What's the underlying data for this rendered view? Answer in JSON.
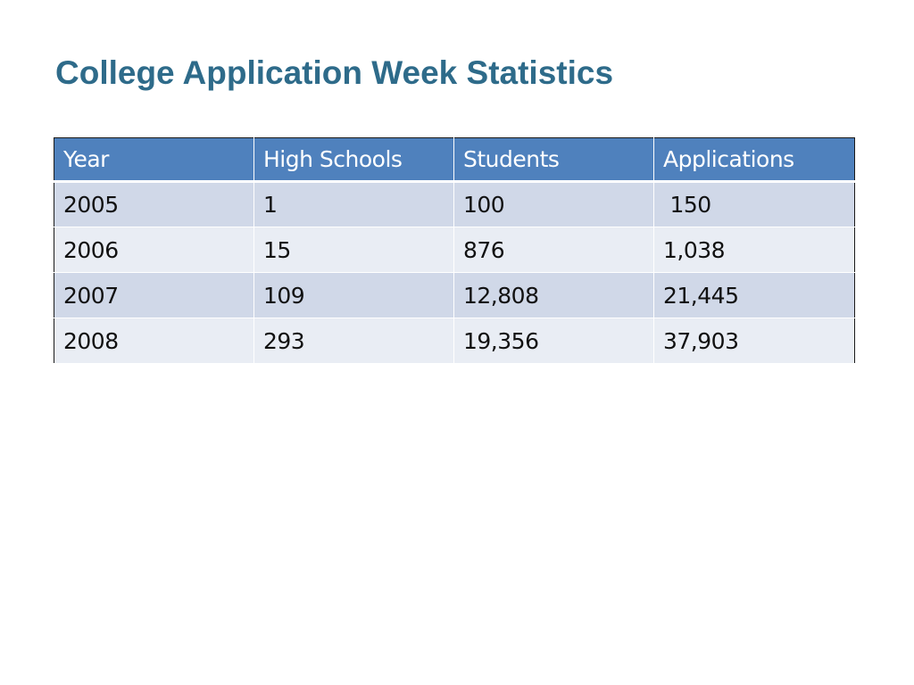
{
  "slide": {
    "title": "College Application Week Statistics"
  },
  "table": {
    "headers": [
      "Year",
      "High Schools",
      "Students",
      "Applications"
    ],
    "rows": [
      [
        "2005",
        "1",
        "100",
        " 150"
      ],
      [
        "2006",
        "15",
        "876",
        "1,038"
      ],
      [
        "2007",
        "109",
        "12,808",
        "21,445"
      ],
      [
        "2008",
        "293",
        "19,356",
        "37,903"
      ]
    ]
  },
  "colors": {
    "title": "#2e6b8a",
    "header_bg": "#4f81bd",
    "row_band_dark": "#d0d8e8",
    "row_band_light": "#e9edf4"
  }
}
